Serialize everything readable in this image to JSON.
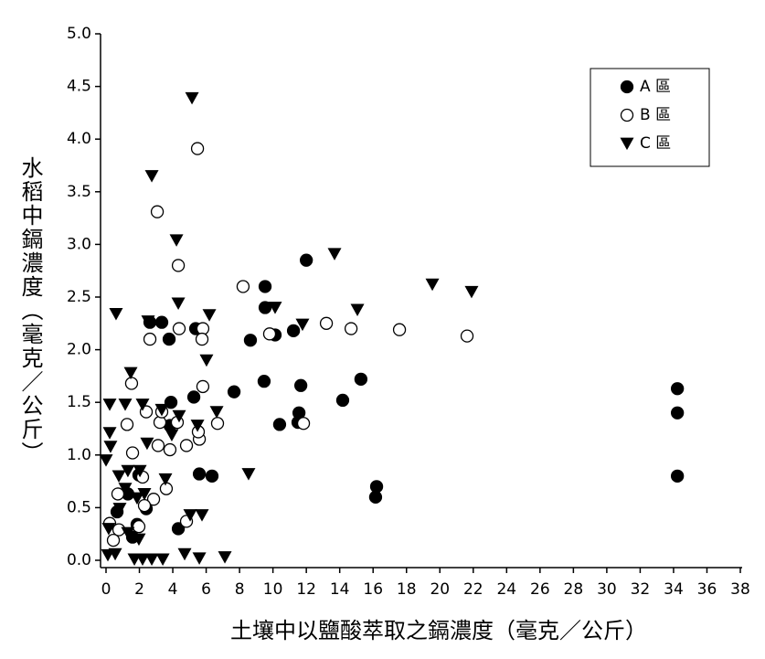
{
  "chart_data": {
    "type": "scatter",
    "x_label": "土壤中以鹽酸萃取之鎘濃度（毫克／公斤）",
    "y_label": "水稻中鎘濃度（毫克／公斤）",
    "xlim": [
      0,
      38
    ],
    "ylim": [
      0,
      5
    ],
    "xticks": [
      0,
      2,
      4,
      6,
      8,
      10,
      12,
      14,
      16,
      18,
      20,
      22,
      24,
      26,
      28,
      30,
      32,
      34,
      36,
      38
    ],
    "yticks": [
      {
        "value": 0,
        "label": "0.0"
      },
      0.5,
      {
        "value": 1,
        "label": "1.0"
      },
      1.5,
      {
        "value": 2,
        "label": "2.0"
      },
      2.5,
      {
        "value": 3,
        "label": "3.0"
      },
      3.5,
      {
        "value": 4,
        "label": "4.0"
      },
      4.5,
      {
        "value": 5,
        "label": "5.0"
      }
    ],
    "legend": "upper right",
    "series": [
      {
        "name": "A 區",
        "marker": "circle-filled",
        "color": "#000000",
        "x": [
          2.63,
          3.34,
          3.78,
          5.37,
          9.53,
          9.53,
          12.0,
          8.65,
          10.13,
          11.23,
          9.47,
          11.67,
          15.27,
          14.18,
          11.56,
          11.5,
          10.4,
          7.67,
          5.26,
          5.59,
          6.35,
          16.21,
          16.15,
          34.23,
          34.23,
          34.23,
          3.89,
          3.83,
          4.33,
          1.86,
          1.31,
          0.66,
          1.97,
          2.41,
          1.59
        ],
        "values": [
          2.26,
          2.26,
          2.1,
          2.2,
          2.6,
          2.4,
          2.85,
          2.09,
          2.14,
          2.18,
          1.7,
          1.66,
          1.72,
          1.52,
          1.4,
          1.31,
          1.29,
          1.6,
          1.55,
          0.82,
          0.8,
          0.7,
          0.6,
          1.63,
          1.4,
          0.8,
          1.5,
          1.28,
          0.3,
          0.34,
          0.63,
          0.46,
          0.81,
          0.49,
          0.22
        ]
      },
      {
        "name": "B 區",
        "marker": "circle-open",
        "color": "#000000",
        "x": [
          3.07,
          5.48,
          4.33,
          8.21,
          4.38,
          5.8,
          5.75,
          2.63,
          13.2,
          14.68,
          17.58,
          21.63,
          9.8,
          5.8,
          1.53,
          11.83,
          6.68,
          5.59,
          5.53,
          4.82,
          3.83,
          3.12,
          3.23,
          3.34,
          4.27,
          2.41,
          1.26,
          1.59,
          2.19,
          3.61,
          2.85,
          2.3,
          0.71,
          0.22,
          0.44,
          1.97,
          4.82,
          0.77
        ],
        "values": [
          3.31,
          3.91,
          2.8,
          2.6,
          2.2,
          2.2,
          2.1,
          2.1,
          2.25,
          2.2,
          2.19,
          2.13,
          2.15,
          1.65,
          1.68,
          1.3,
          1.3,
          1.15,
          1.22,
          1.09,
          1.05,
          1.09,
          1.31,
          1.41,
          1.31,
          1.41,
          1.29,
          1.02,
          0.79,
          0.68,
          0.58,
          0.52,
          0.63,
          0.35,
          0.19,
          0.32,
          0.37,
          0.29
        ]
      },
      {
        "name": "C 區",
        "marker": "triangle-down",
        "color": "#000000",
        "x": [
          2.74,
          5.15,
          4.22,
          4.33,
          6.19,
          0.6,
          2.52,
          6.02,
          10.13,
          11.77,
          13.69,
          15.06,
          19.55,
          21.9,
          1.48,
          2.19,
          3.34,
          4.38,
          6.63,
          5.48,
          0.22,
          1.15,
          0.22,
          0.27,
          0,
          8.54,
          3.56,
          0.77,
          1.31,
          2.03,
          1.15,
          1.86,
          2.3,
          0.82,
          5.04,
          5.75,
          0.16,
          1.31,
          1.97,
          0.11,
          0.55,
          1.7,
          2.19,
          2.74,
          3.4,
          4.71,
          5.59,
          7.12,
          3.94,
          2.46
        ],
        "values": [
          3.65,
          4.39,
          3.04,
          2.44,
          2.33,
          2.34,
          2.27,
          1.9,
          2.4,
          2.24,
          2.91,
          2.38,
          2.62,
          2.55,
          1.78,
          1.48,
          1.43,
          1.37,
          1.41,
          1.28,
          1.48,
          1.48,
          1.21,
          1.08,
          0.95,
          0.82,
          0.77,
          0.8,
          0.85,
          0.85,
          0.68,
          0.59,
          0.63,
          0.49,
          0.43,
          0.43,
          0.3,
          0.26,
          0.2,
          0.05,
          0.06,
          0.01,
          0.01,
          0.01,
          0.01,
          0.06,
          0.02,
          0.03,
          1.19,
          1.11
        ]
      }
    ]
  }
}
